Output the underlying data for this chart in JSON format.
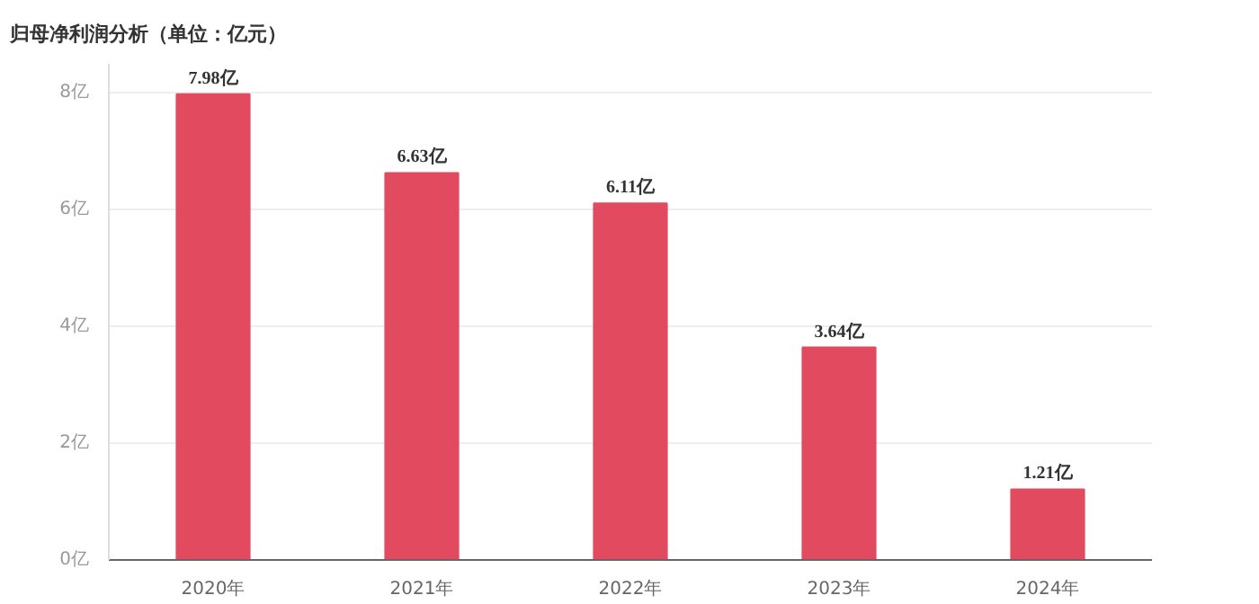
{
  "chart_data": {
    "type": "bar",
    "title": "归母净利润分析（单位：亿元）",
    "categories": [
      "2020年",
      "2021年",
      "2022年",
      "2023年",
      "2024年"
    ],
    "values": [
      7.98,
      6.63,
      6.11,
      3.64,
      1.21
    ],
    "value_labels": [
      "7.98亿",
      "6.63亿",
      "6.11亿",
      "3.64亿",
      "1.21亿"
    ],
    "color": "#e24b5f",
    "ylim": [
      0,
      8.5
    ],
    "yticks": [
      {
        "value": 0,
        "label": "0亿"
      },
      {
        "value": 2,
        "label": "2亿"
      },
      {
        "value": 4,
        "label": "4亿"
      },
      {
        "value": 6,
        "label": "6亿"
      },
      {
        "value": 8,
        "label": "8亿"
      }
    ],
    "grid": "y"
  }
}
